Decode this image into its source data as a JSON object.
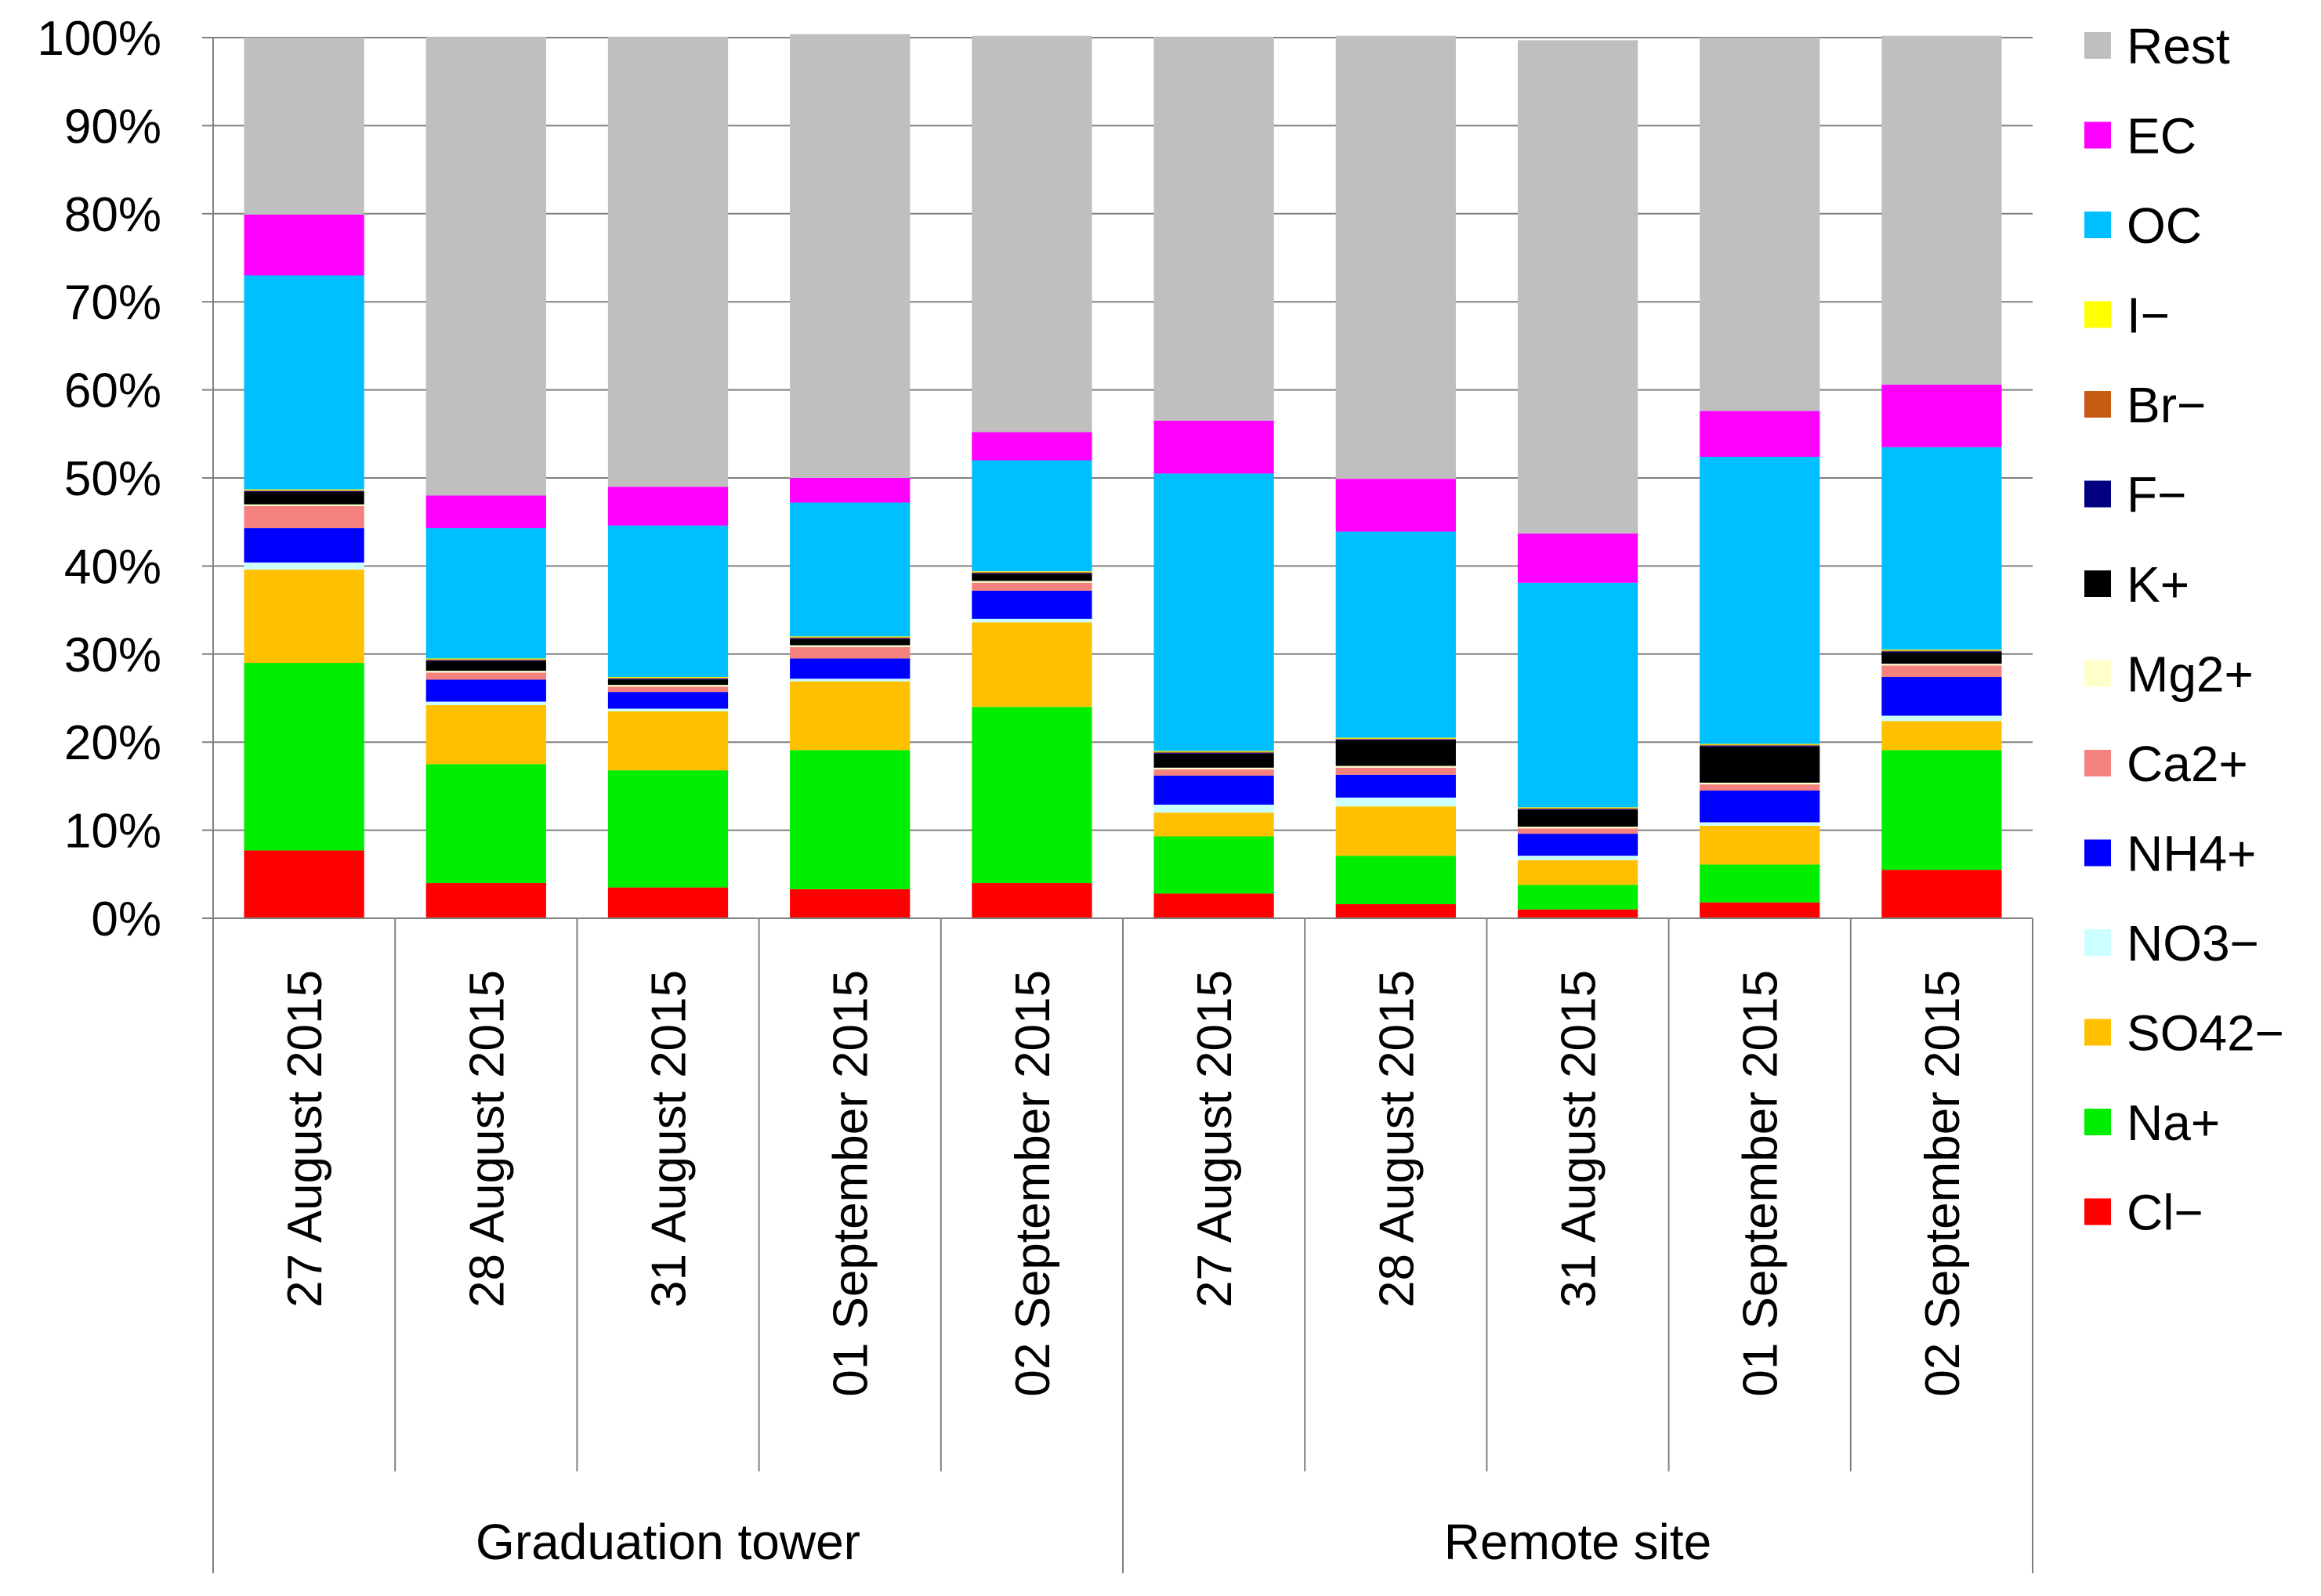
{
  "chart_data": {
    "type": "bar",
    "stacked": true,
    "percent": true,
    "ylim": [
      0,
      100
    ],
    "yticks": [
      "0%",
      "10%",
      "20%",
      "30%",
      "40%",
      "50%",
      "60%",
      "70%",
      "80%",
      "90%",
      "100%"
    ],
    "grid": true,
    "legend_position": "right",
    "categories": [
      "27 August 2015",
      "28 August 2015",
      "31 August 2015",
      "01 September 2015",
      "02 September 2015",
      "27 August 2015",
      "28 August 2015",
      "31 August 2015",
      "01 September 2015",
      "02 September 2015"
    ],
    "groups": [
      {
        "label": "Graduation tower",
        "count": 5
      },
      {
        "label": "Remote site",
        "count": 5
      }
    ],
    "series": [
      {
        "name": "Cl−",
        "color": "#ff0000",
        "values": [
          7.7,
          4.0,
          3.5,
          3.3,
          4.0,
          2.8,
          1.6,
          1.0,
          1.8,
          5.5
        ]
      },
      {
        "name": "Na+",
        "color": "#00ee00",
        "values": [
          21.3,
          13.5,
          13.3,
          15.8,
          20.0,
          6.5,
          5.5,
          2.8,
          4.3,
          13.6
        ]
      },
      {
        "name": "SO42−",
        "color": "#ffc000",
        "values": [
          10.6,
          6.7,
          6.7,
          7.8,
          9.6,
          2.7,
          5.6,
          2.8,
          4.4,
          3.3
        ]
      },
      {
        "name": "NO3−",
        "color": "#ccffff",
        "values": [
          0.8,
          0.4,
          0.3,
          0.3,
          0.4,
          0.9,
          1.0,
          0.5,
          0.4,
          0.6
        ]
      },
      {
        "name": "NH4+",
        "color": "#0000ff",
        "values": [
          3.9,
          2.5,
          1.9,
          2.3,
          3.2,
          3.3,
          2.6,
          2.5,
          3.6,
          4.4
        ]
      },
      {
        "name": "Ca2+",
        "color": "#f4817e",
        "values": [
          2.5,
          0.8,
          0.6,
          1.3,
          0.9,
          0.7,
          0.8,
          0.6,
          0.7,
          1.3
        ]
      },
      {
        "name": "Mg2+",
        "color": "#ffffcc",
        "values": [
          0.2,
          0.2,
          0.2,
          0.2,
          0.2,
          0.2,
          0.2,
          0.2,
          0.2,
          0.2
        ]
      },
      {
        "name": "K+",
        "color": "#000000",
        "values": [
          1.4,
          1.1,
          0.6,
          0.7,
          0.8,
          1.6,
          2.9,
          1.9,
          4.1,
          1.3
        ]
      },
      {
        "name": "F−",
        "color": "#000080",
        "values": [
          0.1,
          0.1,
          0.1,
          0.1,
          0.1,
          0.1,
          0.1,
          0.1,
          0.1,
          0.1
        ]
      },
      {
        "name": "Br−",
        "color": "#c55a11",
        "values": [
          0.1,
          0.1,
          0.1,
          0.1,
          0.1,
          0.1,
          0.1,
          0.1,
          0.1,
          0.1
        ]
      },
      {
        "name": "I−",
        "color": "#ffff00",
        "values": [
          0.1,
          0.1,
          0.1,
          0.1,
          0.1,
          0.1,
          0.1,
          0.1,
          0.1,
          0.1
        ]
      },
      {
        "name": "OC",
        "color": "#00bfff",
        "values": [
          24.3,
          14.8,
          17.2,
          15.2,
          12.6,
          31.5,
          23.4,
          25.5,
          32.6,
          23.0
        ]
      },
      {
        "name": "EC",
        "color": "#ff00ff",
        "values": [
          6.9,
          3.7,
          4.4,
          2.8,
          3.2,
          6.0,
          6.0,
          5.6,
          5.2,
          7.1
        ]
      },
      {
        "name": "Rest",
        "color": "#bfbfbf",
        "values": [
          20.1,
          52.1,
          51.1,
          50.4,
          45.0,
          43.6,
          50.3,
          56.0,
          42.4,
          39.6
        ]
      }
    ]
  }
}
